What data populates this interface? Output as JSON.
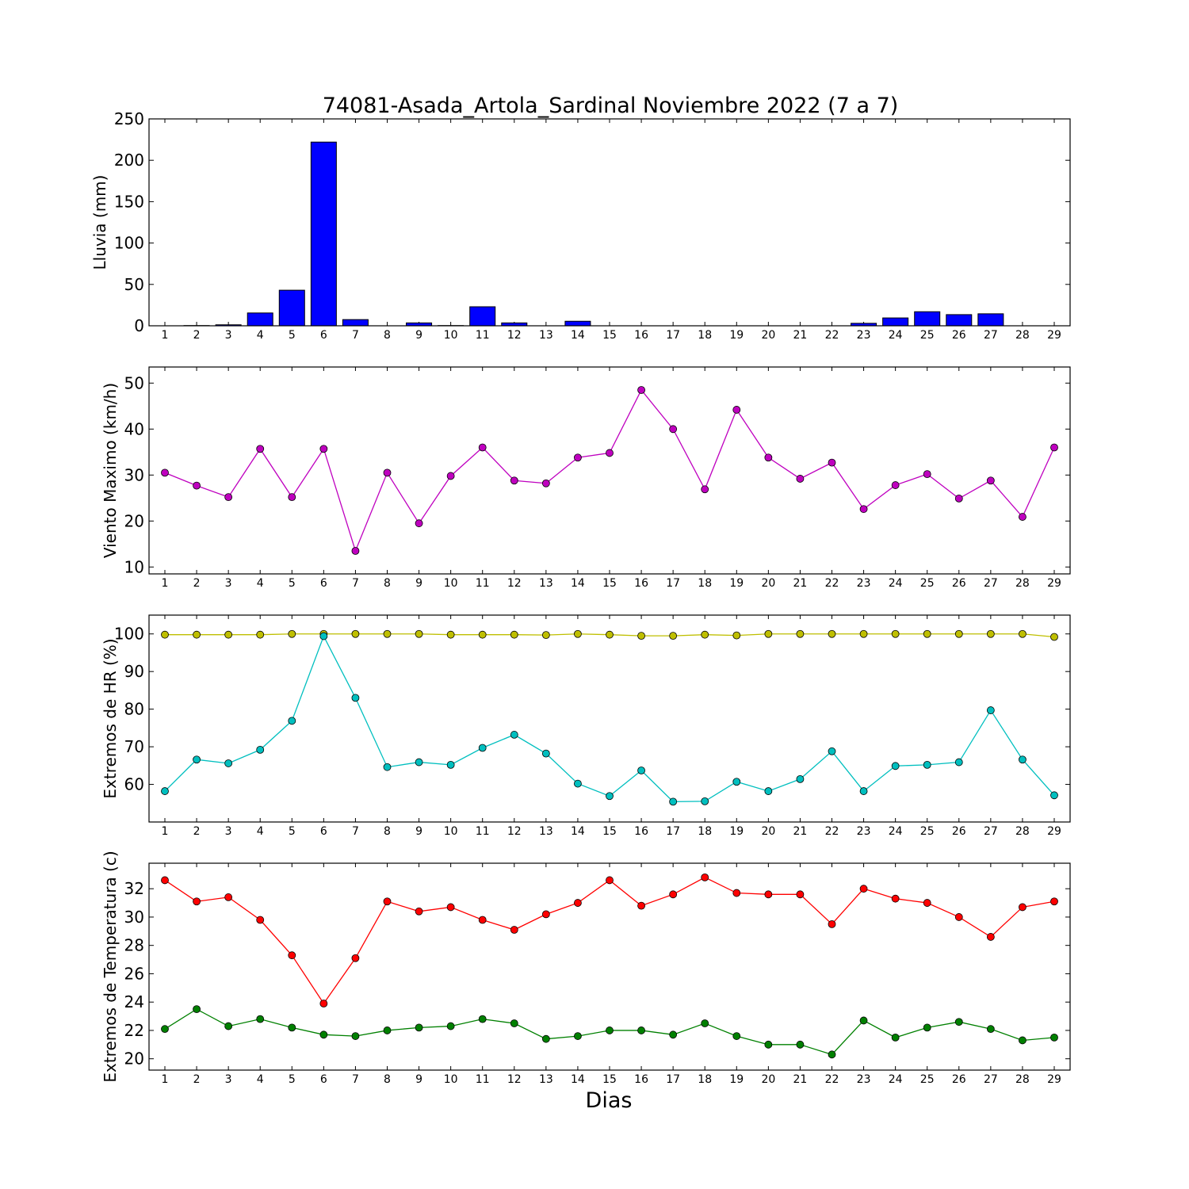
{
  "chart_data": {
    "title": "74081-Asada_Artola_Sardinal Noviembre 2022  (7 a 7)",
    "xlabel": "Dias",
    "days": [
      1,
      2,
      3,
      4,
      5,
      6,
      7,
      8,
      9,
      10,
      11,
      12,
      13,
      14,
      15,
      16,
      17,
      18,
      19,
      20,
      21,
      22,
      23,
      24,
      25,
      26,
      27,
      28,
      29
    ],
    "panels": [
      {
        "type": "bar",
        "ylabel": "Lluvia (mm)",
        "ylim": [
          0,
          250
        ],
        "yticks": [
          0,
          50,
          100,
          150,
          200,
          250
        ],
        "series": [
          {
            "color": "#0000ff",
            "values": [
              0,
              0.3,
              1.2,
              15.5,
              43,
              222,
              7.5,
              0,
              3.5,
              0.3,
              23,
              3.5,
              0,
              5.5,
              0,
              0,
              0,
              0,
              0,
              0,
              0,
              0,
              3,
              9.5,
              17,
              13.5,
              14.5,
              0,
              0
            ]
          }
        ]
      },
      {
        "type": "line",
        "ylabel": "Viento Maximo (km/h)",
        "ylim": [
          8.5,
          53.5
        ],
        "yticks": [
          10,
          20,
          30,
          40,
          50
        ],
        "series": [
          {
            "color": "#bf00bf",
            "values": [
              30.5,
              27.7,
              25.2,
              35.7,
              25.2,
              35.7,
              13.5,
              30.5,
              19.5,
              29.8,
              36,
              28.8,
              28.2,
              33.8,
              34.8,
              48.5,
              40,
              26.9,
              44.2,
              33.8,
              29.2,
              32.7,
              22.6,
              27.8,
              30.2,
              24.9,
              28.8,
              20.9,
              36
            ]
          }
        ]
      },
      {
        "type": "line",
        "ylabel": "Extremos de HR (%)",
        "ylim": [
          50,
          105
        ],
        "yticks": [
          60,
          70,
          80,
          90,
          100
        ],
        "series": [
          {
            "color": "#bfbf00",
            "values": [
              99.8,
              99.8,
              99.8,
              99.8,
              100,
              100,
              100,
              100,
              100,
              99.8,
              99.8,
              99.8,
              99.7,
              100,
              99.8,
              99.5,
              99.5,
              99.8,
              99.6,
              100,
              100,
              100,
              100,
              100,
              100,
              100,
              100,
              100,
              99.2
            ]
          },
          {
            "color": "#00bfbf",
            "values": [
              58.2,
              66.6,
              65.6,
              69.2,
              76.9,
              99.4,
              83,
              64.6,
              65.9,
              65.2,
              69.7,
              73.2,
              68.2,
              60.2,
              56.9,
              63.7,
              55.4,
              55.5,
              60.7,
              58.2,
              61.4,
              68.8,
              58.2,
              64.9,
              65.2,
              65.9,
              79.7,
              66.6,
              57.1
            ]
          }
        ]
      },
      {
        "type": "line",
        "ylabel": "Extremos de Temperatura (c)",
        "ylim": [
          19.2,
          33.8
        ],
        "yticks": [
          20,
          22,
          24,
          26,
          28,
          30,
          32
        ],
        "series": [
          {
            "color": "#ff0000",
            "values": [
              32.6,
              31.1,
              31.4,
              29.8,
              27.3,
              23.9,
              27.1,
              31.1,
              30.4,
              30.7,
              29.8,
              29.1,
              30.2,
              31,
              32.6,
              30.8,
              31.6,
              32.8,
              31.7,
              31.6,
              31.6,
              29.5,
              32,
              31.3,
              31,
              30,
              28.6,
              30.7,
              31.1
            ]
          },
          {
            "color": "#008000",
            "values": [
              22.1,
              23.5,
              22.3,
              22.8,
              22.2,
              21.7,
              21.6,
              22,
              22.2,
              22.3,
              22.8,
              22.5,
              21.4,
              21.6,
              22,
              22,
              21.7,
              22.5,
              21.6,
              21,
              21,
              20.3,
              22.7,
              21.5,
              22.2,
              22.6,
              22.1,
              21.3,
              21.5
            ]
          }
        ]
      }
    ]
  }
}
